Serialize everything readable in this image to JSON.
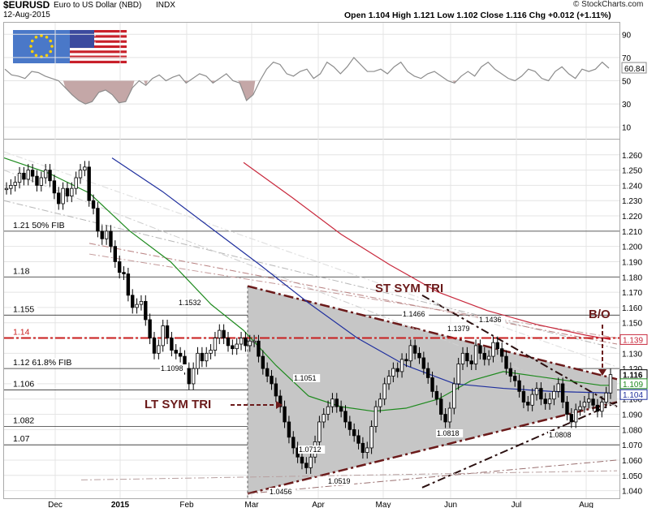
{
  "header": {
    "symbol": "$EURUSD",
    "description": "Euro to US Dollar (NBD)",
    "exchange": "INDX",
    "date": "12-Aug-2015",
    "quote": "Open 1.104  High 1.121  Low 1.102  Close 1.116  Chg +0.012 (+1.11%)",
    "brand": "© StockCharts.com"
  },
  "colors": {
    "candle": "#000000",
    "ma_green": "#1e8a1e",
    "ma_blue": "#1f2f9e",
    "ma_red": "#c8283c",
    "annotation": "#6b1a1a",
    "triangle_fill": "#c6c6c6",
    "rsi_line": "#8c8c8c",
    "rsi_fill": "#c4a7a7"
  },
  "chart_data": [
    {
      "type": "line",
      "panel": "rsi",
      "ylim": [
        0,
        100
      ],
      "yticks": [
        10,
        30,
        50,
        70,
        90
      ],
      "current_label": "60.84",
      "series": [
        {
          "values": [
            60,
            55,
            54,
            52,
            58,
            57,
            54,
            52,
            50,
            44,
            38,
            33,
            30,
            32,
            40,
            42,
            38,
            31,
            32,
            44,
            50,
            46,
            52,
            55,
            50,
            53,
            55,
            48,
            52,
            56,
            54,
            48,
            52,
            56,
            50,
            48,
            33,
            38,
            50,
            60,
            66,
            64,
            56,
            54,
            58,
            60,
            52,
            56,
            66,
            62,
            56,
            62,
            70,
            64,
            58,
            58,
            60,
            56,
            62,
            66,
            58,
            54,
            52,
            56,
            58,
            54,
            50,
            48,
            54,
            58,
            54,
            62,
            66,
            60,
            56,
            52,
            50,
            54,
            60,
            58,
            52,
            50,
            58,
            62,
            56,
            52,
            60,
            58,
            60,
            66,
            60.84
          ]
        }
      ]
    },
    {
      "type": "candlestick",
      "panel": "price",
      "ylim": [
        1.035,
        1.27
      ],
      "yticks": [
        "1.040",
        "1.050",
        "1.060",
        "1.070",
        "1.080",
        "1.090",
        "1.100",
        "1.110",
        "1.120",
        "1.130",
        "1.140",
        "1.150",
        "1.160",
        "1.170",
        "1.180",
        "1.190",
        "1.200",
        "1.210",
        "1.220",
        "1.230",
        "1.240",
        "1.250",
        "1.260"
      ],
      "xticks": [
        "Dec",
        "2015",
        "Feb",
        "Mar",
        "Apr",
        "May",
        "Jun",
        "Jul",
        "Aug"
      ],
      "closes": [
        1.238,
        1.24,
        1.242,
        1.248,
        1.244,
        1.25,
        1.246,
        1.24,
        1.245,
        1.25,
        1.243,
        1.235,
        1.228,
        1.238,
        1.233,
        1.238,
        1.245,
        1.25,
        1.252,
        1.23,
        1.225,
        1.21,
        1.205,
        1.21,
        1.2,
        1.19,
        1.183,
        1.182,
        1.168,
        1.16,
        1.162,
        1.164,
        1.152,
        1.14,
        1.13,
        1.135,
        1.148,
        1.14,
        1.132,
        1.13,
        1.128,
        1.12,
        1.11,
        1.12,
        1.13,
        1.125,
        1.13,
        1.132,
        1.14,
        1.145,
        1.14,
        1.135,
        1.133,
        1.136,
        1.14,
        1.135,
        1.138,
        1.138,
        1.128,
        1.12,
        1.115,
        1.11,
        1.102,
        1.095,
        1.085,
        1.075,
        1.068,
        1.062,
        1.058,
        1.055,
        1.062,
        1.072,
        1.085,
        1.09,
        1.095,
        1.1,
        1.095,
        1.092,
        1.085,
        1.08,
        1.076,
        1.071,
        1.065,
        1.068,
        1.082,
        1.095,
        1.1,
        1.11,
        1.115,
        1.12,
        1.118,
        1.126,
        1.125,
        1.135,
        1.13,
        1.127,
        1.12,
        1.114,
        1.105,
        1.1,
        1.09,
        1.085,
        1.094,
        1.11,
        1.123,
        1.13,
        1.125,
        1.123,
        1.135,
        1.13,
        1.126,
        1.128,
        1.137,
        1.133,
        1.128,
        1.12,
        1.115,
        1.112,
        1.105,
        1.098,
        1.096,
        1.103,
        1.107,
        1.1,
        1.097,
        1.1,
        1.105,
        1.11,
        1.098,
        1.09,
        1.085,
        1.093,
        1.095,
        1.098,
        1.1,
        1.096,
        1.092,
        1.098,
        1.104,
        1.116
      ]
    }
  ],
  "price_labels_left": [
    {
      "text": "1.21  50% FIB",
      "value": 1.21
    },
    {
      "text": "1.18",
      "value": 1.18
    },
    {
      "text": "1.155",
      "value": 1.155
    },
    {
      "text": "1.14",
      "value": 1.14,
      "color": "#c81e1e"
    },
    {
      "text": "1.12  61.8% FIB",
      "value": 1.12
    },
    {
      "text": "1.106",
      "value": 1.106
    },
    {
      "text": "1.082",
      "value": 1.082
    },
    {
      "text": "1.07",
      "value": 1.07
    }
  ],
  "point_labels": [
    {
      "text": "1.1532",
      "value": 1.1532
    },
    {
      "text": "1.1098",
      "value": 1.1098
    },
    {
      "text": "1.1051",
      "value": 1.1051
    },
    {
      "text": "1.0712",
      "value": 1.0712
    },
    {
      "text": "1.0456",
      "value": 1.0456
    },
    {
      "text": "1.0519",
      "value": 1.0519
    },
    {
      "text": "1.1466",
      "value": 1.1466
    },
    {
      "text": "1.1379",
      "value": 1.1379
    },
    {
      "text": "1.1436",
      "value": 1.1436
    },
    {
      "text": "1.0818",
      "value": 1.0818
    },
    {
      "text": "1.0808",
      "value": 1.0808
    }
  ],
  "right_badges": [
    {
      "text": "1.139",
      "value": 1.139,
      "color": "#c8283c"
    },
    {
      "text": "1.116",
      "value": 1.116,
      "color": "#000000",
      "bold": true
    },
    {
      "text": "1.109",
      "value": 1.109,
      "color": "#1e8a1e"
    },
    {
      "text": "1.104",
      "value": 1.104,
      "color": "#1f2f9e"
    }
  ],
  "annotations": {
    "st": "ST SYM TRI",
    "lt": "LT SYM TRI",
    "bo": "B/O"
  }
}
